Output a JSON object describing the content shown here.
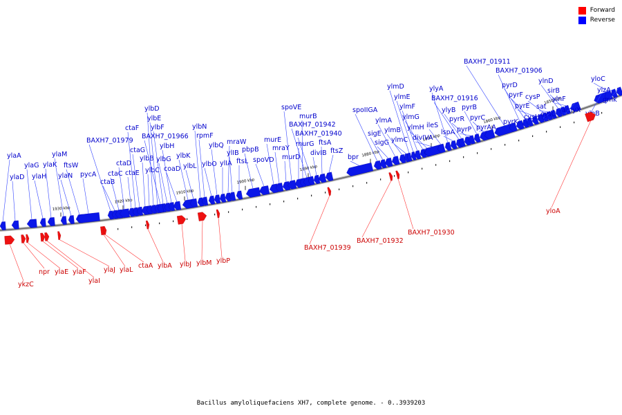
{
  "legend": {
    "forward_label": "Forward",
    "reverse_label": "Reverse",
    "forward_color": "#ff0000",
    "reverse_color": "#0000ff"
  },
  "caption": "Bacillus amyloliquefaciens XH7, complete genome. - 0..3939203",
  "ticks": [
    "1930 kbp",
    "1920 kbp",
    "1910 kbp",
    "1900 kbp",
    "1890 kbp",
    "1880 kbp",
    "1870 kbp",
    "1860 kbp",
    "1850 kbp"
  ],
  "reverse_genes": [
    "ylaA",
    "ylaD",
    "ylaG",
    "ylaH",
    "ylaK",
    "ylaM",
    "ylaN",
    "ftsW",
    "pycA",
    "BAXH7_01979",
    "ctaB",
    "ctaC",
    "ctaD",
    "ctaE",
    "ctaF",
    "ctaG",
    "ylbB",
    "ylbC",
    "ylbD",
    "ylbE",
    "ylbF",
    "ylbG",
    "ylbH",
    "BAXH7_01966",
    "coaD",
    "ylbK",
    "ylbL",
    "ylbN",
    "rpmF",
    "ylbO",
    "ylbQ",
    "ylIA",
    "mraW",
    "ylIB",
    "ftsL",
    "pbpB",
    "spoVD",
    "murE",
    "mraY",
    "murD",
    "spoVE",
    "murG",
    "murB",
    "BAXH7_01942",
    "BAXH7_01940",
    "divIB",
    "ftsA",
    "ftsZ",
    "bpr",
    "spoIIGA",
    "sigE",
    "sigG",
    "ylmA",
    "ylmB",
    "ylmC",
    "ylmD",
    "ylmE",
    "ylmF",
    "ylmG",
    "ylmH",
    "divIVA",
    "ileS",
    "ylyA",
    "lspA",
    "BAXH7_01916",
    "ylyB",
    "pyrR",
    "pyrP",
    "pyrB",
    "pyrC",
    "pyrAA",
    "BAXH7_01911",
    "pyrK",
    "BAXH7_01906",
    "pyrD",
    "pyrF",
    "pyrE",
    "cysH",
    "cysP",
    "sat",
    "cysC",
    "ylnD",
    "sirB",
    "ylnF",
    "amyX",
    "ylnB",
    "yloC",
    "ylzA",
    "gmk"
  ],
  "forward_genes": [
    "ykzC",
    "npr",
    "ylaE",
    "ylaF",
    "ylaI",
    "ylaJ",
    "ylaL",
    "ctaA",
    "ylbA",
    "ylbJ",
    "ylbM",
    "ylbP",
    "BAXH7_01939",
    "BAXH7_01932",
    "BAXH7_01930",
    "yloA"
  ]
}
